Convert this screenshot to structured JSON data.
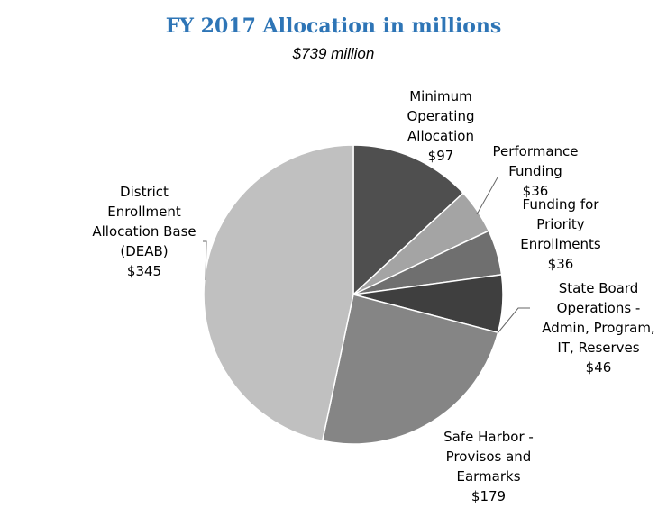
{
  "chart_data": {
    "type": "pie",
    "title": "FY 2017 Allocation in millions",
    "subtitle": "$739 million",
    "slices": [
      {
        "label_lines": [
          "Minimum",
          "Operating",
          "Allocation",
          "$97"
        ],
        "value": 97,
        "color": "#4f4f4f"
      },
      {
        "label_lines": [
          "Performance",
          "Funding",
          "$36"
        ],
        "value": 36,
        "color": "#a4a4a4"
      },
      {
        "label_lines": [
          "Funding for",
          "Priority",
          "Enrollments",
          "$36"
        ],
        "value": 36,
        "color": "#6f6f6f"
      },
      {
        "label_lines": [
          "State Board",
          "Operations -",
          "Admin, Program,",
          "IT, Reserves",
          "$46"
        ],
        "value": 46,
        "color": "#3f3f3f"
      },
      {
        "label_lines": [
          "Safe Harbor -",
          "Provisos and",
          "Earmarks",
          "$179"
        ],
        "value": 179,
        "color": "#858585"
      },
      {
        "label_lines": [
          "District",
          "Enrollment",
          "Allocation Base",
          "(DEAB)",
          "$345"
        ],
        "value": 345,
        "color": "#c0c0c0"
      }
    ]
  }
}
